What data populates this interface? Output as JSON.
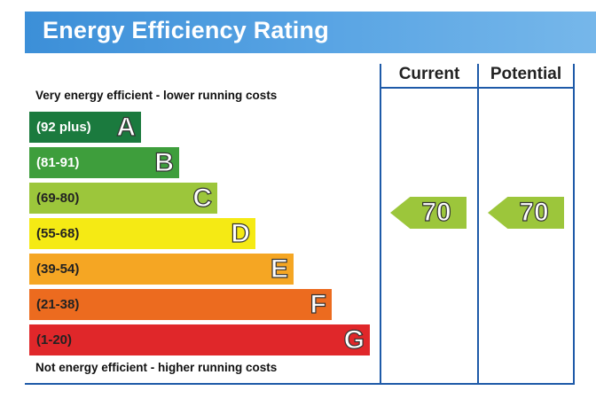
{
  "header": {
    "title": "Energy Efficiency Rating"
  },
  "columns": {
    "current": "Current",
    "potential": "Potential"
  },
  "notes": {
    "top": "Very energy efficient - lower running costs",
    "bottom": "Not energy efficient - higher running costs"
  },
  "chart_data": {
    "type": "bar",
    "title": "Energy Efficiency Rating",
    "bands": [
      {
        "letter": "A",
        "range": "(92 plus)",
        "color": "#1b7a3e",
        "range_text_color": "#ffffff"
      },
      {
        "letter": "B",
        "range": "(81-91)",
        "color": "#3e9e3c",
        "range_text_color": "#ffffff"
      },
      {
        "letter": "C",
        "range": "(69-80)",
        "color": "#9cc63b",
        "range_text_color": "#222222"
      },
      {
        "letter": "D",
        "range": "(55-68)",
        "color": "#f5ea14",
        "range_text_color": "#222222"
      },
      {
        "letter": "E",
        "range": "(39-54)",
        "color": "#f5a623",
        "range_text_color": "#222222"
      },
      {
        "letter": "F",
        "range": "(21-38)",
        "color": "#ec6b1f",
        "range_text_color": "#222222"
      },
      {
        "letter": "G",
        "range": "(1-20)",
        "color": "#e0272a",
        "range_text_color": "#222222"
      }
    ],
    "ratings": {
      "current": {
        "value": 70,
        "band": "C",
        "color": "#9cc63b"
      },
      "potential": {
        "value": 70,
        "band": "C",
        "color": "#9cc63b"
      }
    }
  }
}
